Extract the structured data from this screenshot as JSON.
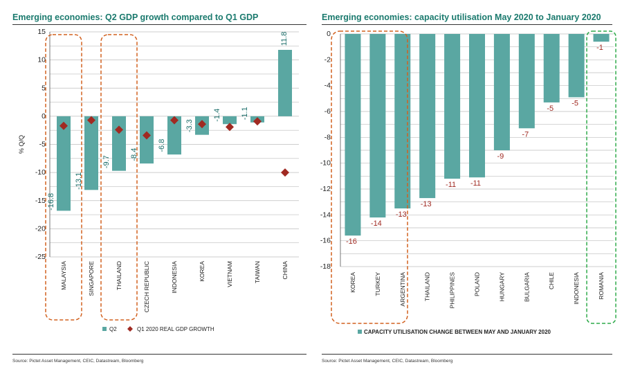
{
  "colors": {
    "bar": "#5aa7a2",
    "marker": "#a02a22",
    "title": "#1b7a6e",
    "label_teal": "#1b6e6a",
    "label_red": "#a02a22",
    "box_orange": "#d2601e",
    "box_green": "#2eaa4a",
    "grid": "#bdbdbd"
  },
  "chart_data": [
    {
      "type": "bar",
      "title": "Emerging economies: Q2 GDP growth compared to Q1 GDP",
      "ylabel": "% Q/Q",
      "ylim": [
        -25,
        15
      ],
      "yticks": [
        "15",
        "10",
        "5",
        "0",
        "-5",
        "-10",
        "-15",
        "-20",
        "-25"
      ],
      "categories": [
        "MALAYSIA",
        "SINGAPORE",
        "THAILAND",
        "CZECH REPUBLIC",
        "INDONESIA",
        "KOREA",
        "VIETNAM",
        "TAIWAN",
        "CHINA"
      ],
      "series": [
        {
          "name": "Q2",
          "values": [
            -16.8,
            -13.1,
            -9.7,
            -8.4,
            -6.8,
            -3.3,
            -1.4,
            -1.1,
            11.8
          ],
          "labels": [
            "-16.8",
            "-13.1",
            "-9.7",
            "-8.4",
            "-6.8",
            "-3.3",
            "-1.4",
            "-1.1",
            "11.8"
          ]
        },
        {
          "name": "Q1 2020 REAL GDP GROWTH",
          "values": [
            -1.7,
            -0.7,
            -2.4,
            -3.4,
            -0.7,
            -1.4,
            -1.9,
            -0.9,
            -10
          ]
        }
      ],
      "legend": [
        "Q2",
        "Q1 2020 REAL GDP GROWTH"
      ],
      "source": "Source: Pictet Asset Management, CEIC, Datastream, Bloomberg",
      "highlight_boxes": [
        "MALAYSIA",
        "THAILAND"
      ]
    },
    {
      "type": "bar",
      "title": "Emerging economies: capacity utilisation  May 2020 to January 2020",
      "ylim": [
        -18,
        0
      ],
      "yticks": [
        "0",
        "-2",
        "-4",
        "-6",
        "-8",
        "-10",
        "-12",
        "-14",
        "-16",
        "-18"
      ],
      "categories": [
        "KOREA",
        "TURKEY",
        "ARGENTINA",
        "THAILAND",
        "PHILIPPINES",
        "POLAND",
        "HUNGARY",
        "BULGARIA",
        "CHILE",
        "INDONESIA",
        "ROMANIA"
      ],
      "series": [
        {
          "name": "CAPACITY UTILISATION CHANGE BETWEEN MAY AND JANUARY 2020",
          "values": [
            -15.6,
            -14.2,
            -13.5,
            -12.7,
            -11.2,
            -11.1,
            -9.0,
            -7.3,
            -5.3,
            -4.9,
            -0.6
          ],
          "labels": [
            "-16",
            "-14",
            "-13",
            "-13",
            "-11",
            "-11",
            "-9",
            "-7",
            "-5",
            "-5",
            "-1"
          ]
        }
      ],
      "legend": [
        "CAPACITY UTILISATION CHANGE BETWEEN MAY AND JANUARY 2020"
      ],
      "source": "Source: Pictet Asset Management, CEIC, Datastream, Bloomberg",
      "highlight_boxes": [
        "KOREA-ARGENTINA",
        "ROMANIA"
      ]
    }
  ]
}
